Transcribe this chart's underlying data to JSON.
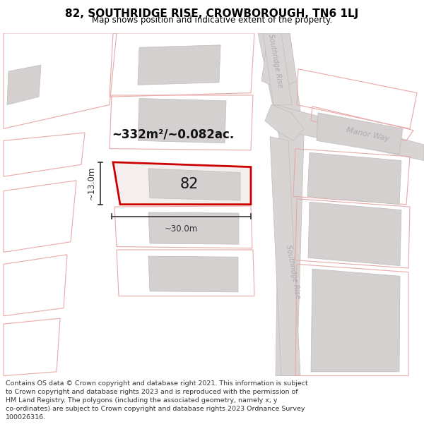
{
  "title": "82, SOUTHRIDGE RISE, CROWBOROUGH, TN6 1LJ",
  "subtitle": "Map shows position and indicative extent of the property.",
  "footer_line1": "Contains OS data © Crown copyright and database right 2021. This information is subject",
  "footer_line2": "to Crown copyright and database rights 2023 and is reproduced with the permission of",
  "footer_line3": "HM Land Registry. The polygons (including the associated geometry, namely x, y",
  "footer_line4": "co-ordinates) are subject to Crown copyright and database rights 2023 Ordnance Survey",
  "footer_line5": "100026316.",
  "area_label": "~332m²/~0.082ac.",
  "number_label": "82",
  "dim_width": "~30.0m",
  "dim_height": "~13.0m",
  "road_fill": "#d8d4d4",
  "road_edge": "#c0bcbc",
  "plot_edge": "#e8a8a8",
  "building_fill": "#d4d0d0",
  "building_edge": "#c0bcbc",
  "highlight_fill": "#f5eeee",
  "highlight_edge": "#cc0000",
  "street_label_color": "#aaaaaa",
  "dim_color": "#333333",
  "title_color": "#000000",
  "footer_color": "#333333",
  "map_bg": "#ffffff"
}
